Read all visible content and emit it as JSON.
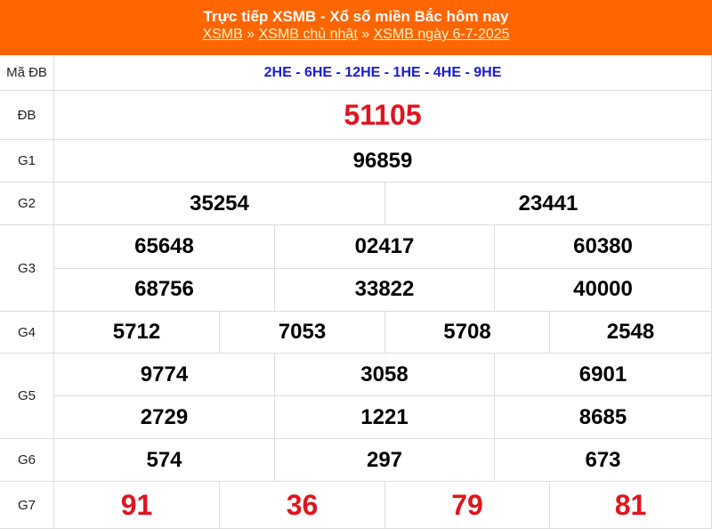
{
  "header": {
    "title": "Trực tiếp XSMB - Xổ số miền Bắc hôm nay",
    "breadcrumb": [
      "XSMB",
      "XSMB chủ nhật",
      "XSMB ngày 6-7-2025"
    ],
    "separator": "»",
    "background_color": "#ff6600"
  },
  "code_row": {
    "label": "Mã ĐB",
    "value": "2HE - 6HE - 12HE - 1HE - 4HE - 9HE"
  },
  "prizes": [
    {
      "label": "ĐB",
      "values": [
        "51105"
      ]
    },
    {
      "label": "G1",
      "values": [
        "96859"
      ]
    },
    {
      "label": "G2",
      "values": [
        "35254",
        "23441"
      ]
    },
    {
      "label": "G3",
      "values": [
        "65648",
        "02417",
        "60380",
        "68756",
        "33822",
        "40000"
      ]
    },
    {
      "label": "G4",
      "values": [
        "5712",
        "7053",
        "5708",
        "2548"
      ]
    },
    {
      "label": "G5",
      "values": [
        "9774",
        "3058",
        "6901",
        "2729",
        "1221",
        "8685"
      ]
    },
    {
      "label": "G6",
      "values": [
        "574",
        "297",
        "673"
      ]
    },
    {
      "label": "G7",
      "values": [
        "91",
        "36",
        "79",
        "81"
      ]
    }
  ],
  "colors": {
    "special": "#e0141e",
    "code": "#1a1ad6"
  }
}
